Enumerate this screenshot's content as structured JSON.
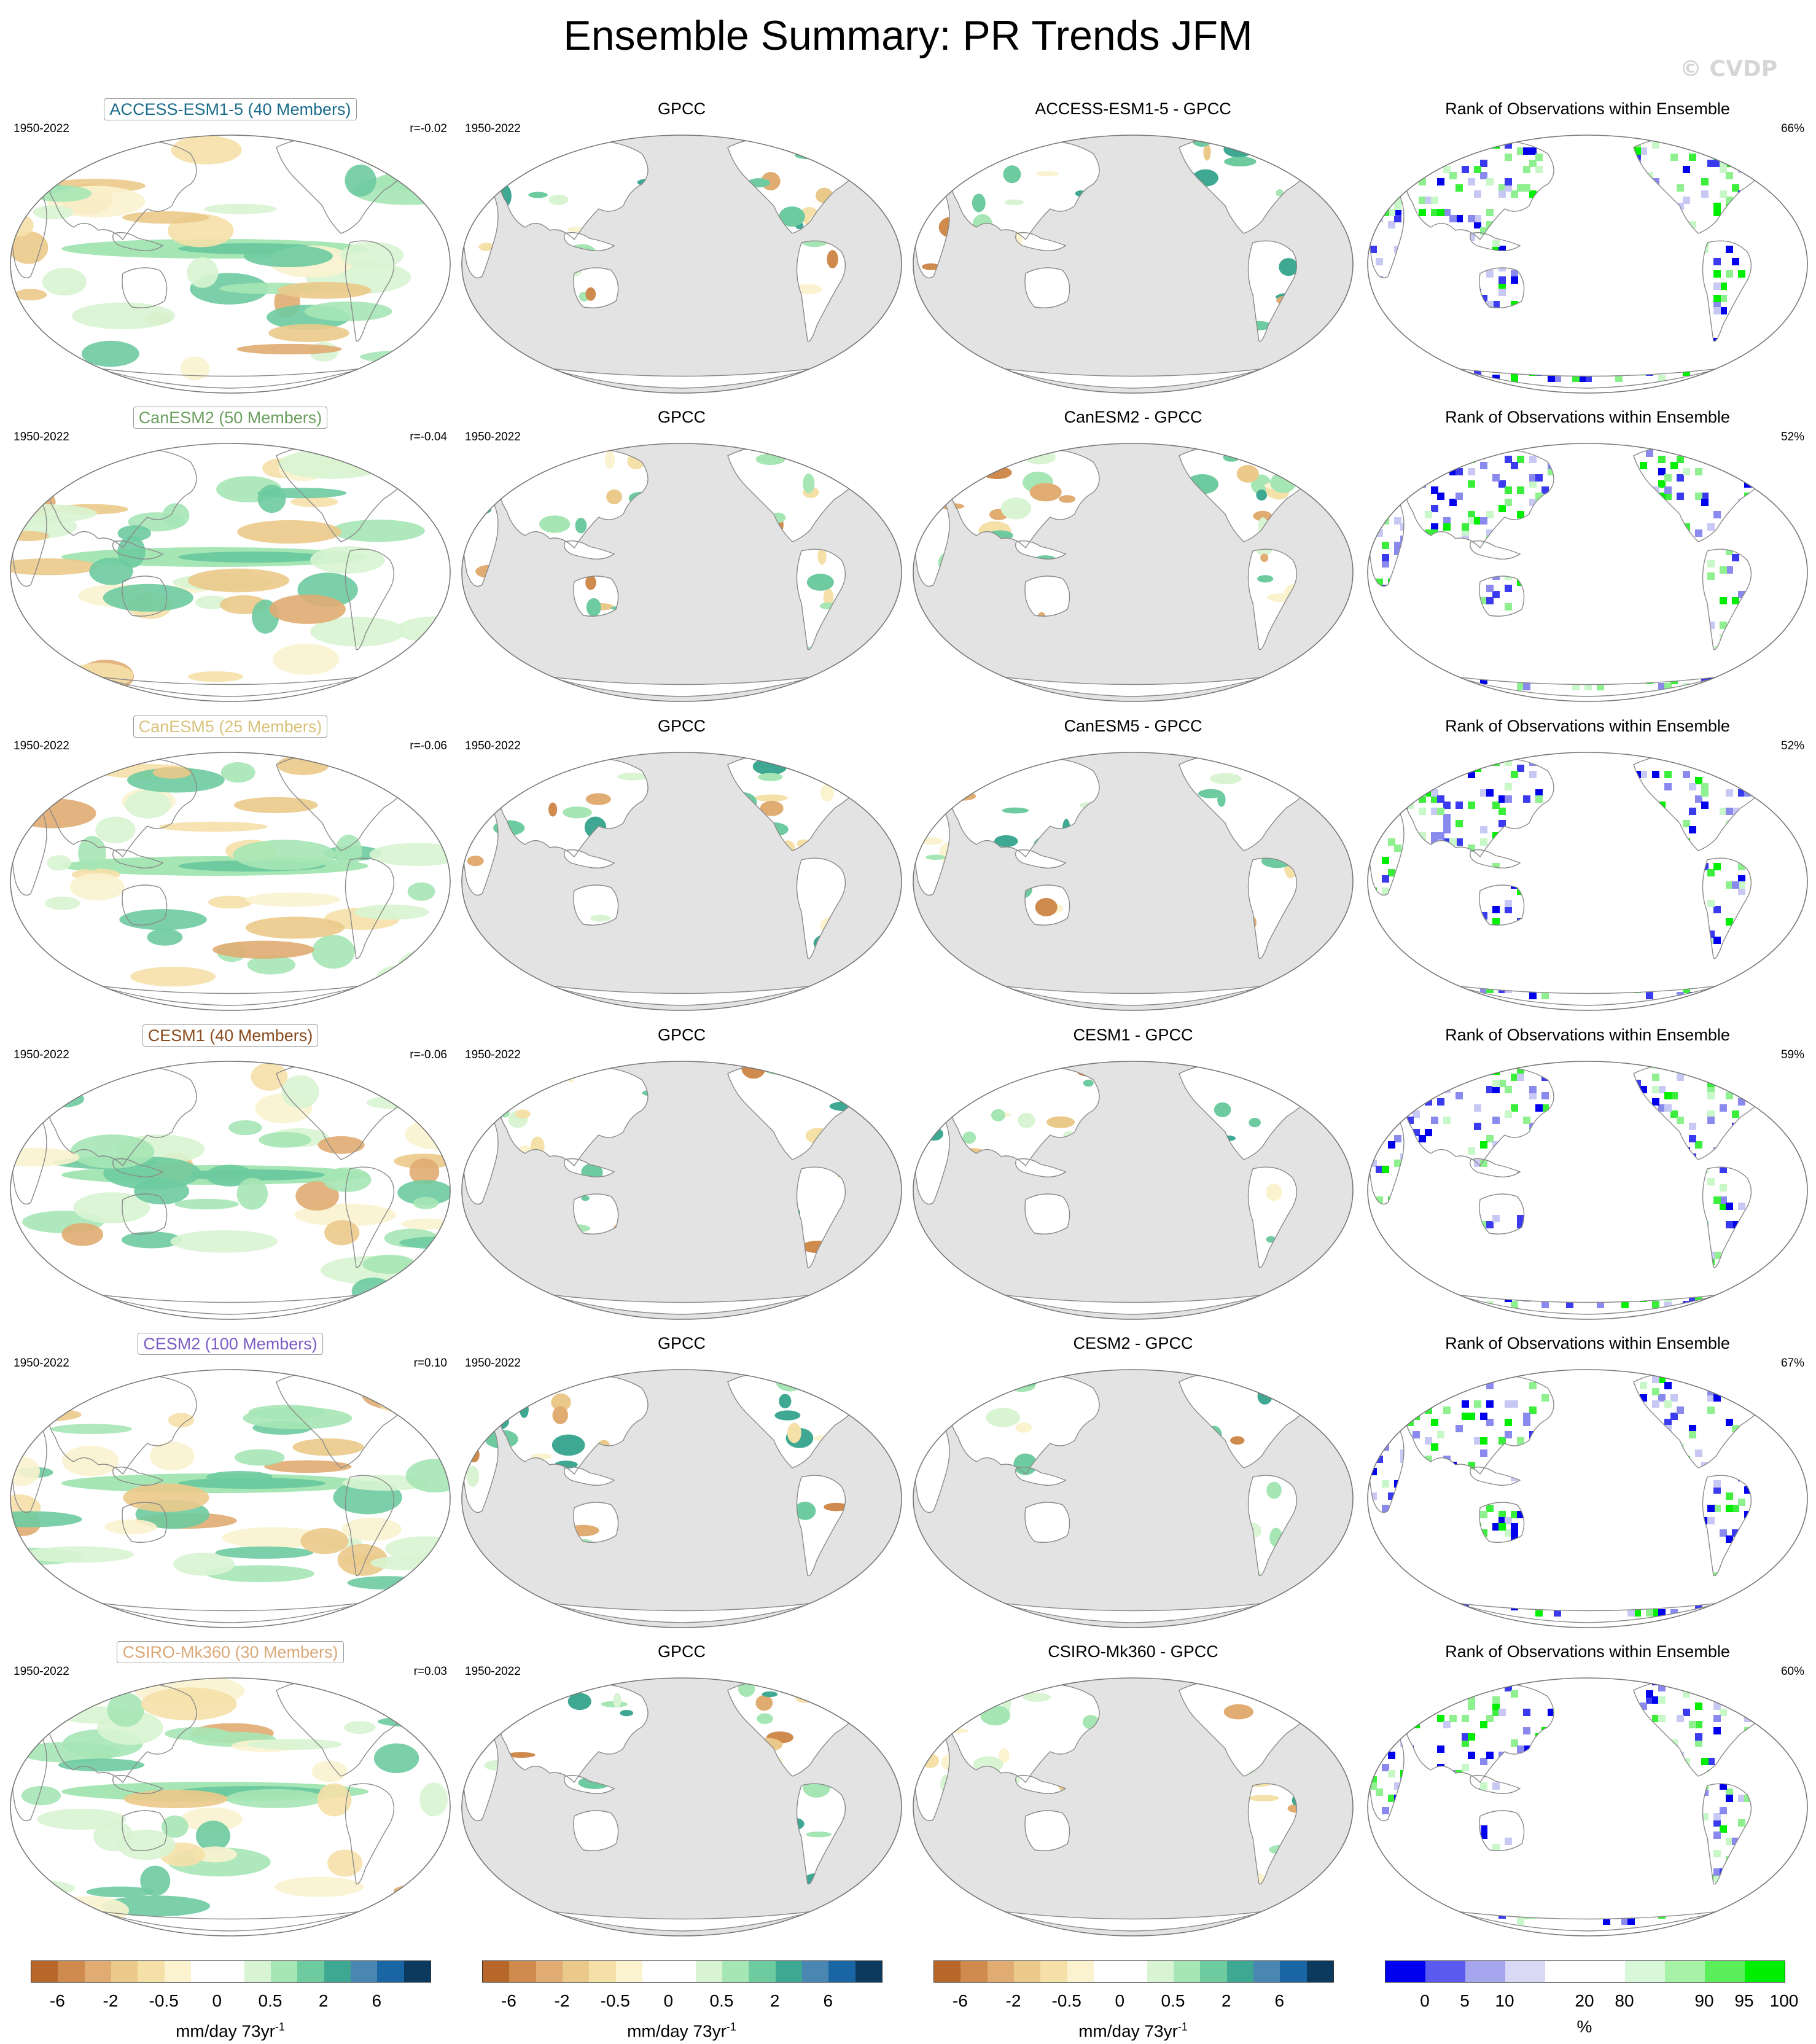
{
  "title": "Ensemble Summary: PR Trends JFM",
  "watermark": "© CVDP",
  "period": "1950-2022",
  "obs_name": "GPCC",
  "rank_title": "Rank of Observations within Ensemble",
  "rows": [
    {
      "model": "ACCESS-ESM1-5 (40 Members)",
      "color": "#1a6b8a",
      "r": "r=-0.02",
      "diff": "ACCESS-ESM1-5 - GPCC",
      "rank_pct": "66%"
    },
    {
      "model": "CanESM2 (50 Members)",
      "color": "#6b9e5e",
      "r": "r=-0.04",
      "diff": "CanESM2 - GPCC",
      "rank_pct": "52%"
    },
    {
      "model": "CanESM5 (25 Members)",
      "color": "#d8c27a",
      "r": "r=-0.06",
      "diff": "CanESM5 - GPCC",
      "rank_pct": "52%"
    },
    {
      "model": "CESM1 (40 Members)",
      "color": "#8a4b1f",
      "r": "r=-0.06",
      "diff": "CESM1 - GPCC",
      "rank_pct": "59%"
    },
    {
      "model": "CESM2 (100 Members)",
      "color": "#7b5cc4",
      "r": "r=0.10",
      "diff": "CESM2 - GPCC",
      "rank_pct": "67%"
    },
    {
      "model": "CSIRO-Mk360 (30 Members)",
      "color": "#d9a878",
      "r": "r=0.03",
      "diff": "CSIRO-Mk360 - GPCC",
      "rank_pct": "60%"
    }
  ],
  "colorbars": {
    "trend": {
      "colors": [
        "#b8672a",
        "#cf8a4e",
        "#e0ac72",
        "#ebc98a",
        "#f5e0a8",
        "#fbf3cf",
        "#ffffff",
        "#ffffff",
        "#d8f4d2",
        "#a6e6b5",
        "#6ecba0",
        "#3ea892",
        "#4a86b2",
        "#1a65a3",
        "#0b3a5e"
      ],
      "ticks": [
        {
          "v": 1,
          "t": "-6"
        },
        {
          "v": 3,
          "t": "-2"
        },
        {
          "v": 5,
          "t": "-0.5"
        },
        {
          "v": 7,
          "t": "0"
        },
        {
          "v": 9,
          "t": "0.5"
        },
        {
          "v": 11,
          "t": "2"
        },
        {
          "v": 13,
          "t": "6"
        }
      ],
      "label": "mm/day 73yr",
      "label_sup": "-1"
    },
    "rank": {
      "colors": [
        "#0000ee",
        "#5a5aee",
        "#a6a6ee",
        "#d9d9f6",
        "#ffffff",
        "#ffffff",
        "#d9f7d9",
        "#a6f2a6",
        "#5aee5a",
        "#00ee00"
      ],
      "ticks": [
        {
          "v": 1,
          "t": "0"
        },
        {
          "v": 2,
          "t": "5"
        },
        {
          "v": 3,
          "t": "10"
        },
        {
          "v": 5,
          "t": "20"
        },
        {
          "v": 6,
          "t": "80"
        },
        {
          "v": 8,
          "t": "90"
        },
        {
          "v": 9,
          "t": "95"
        },
        {
          "v": 10,
          "t": "100"
        }
      ],
      "label": "%"
    }
  }
}
